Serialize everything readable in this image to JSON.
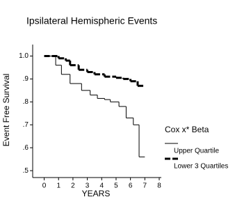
{
  "chart_data": {
    "type": "step",
    "title": "Ipsilateral Hemispheric Events",
    "xlabel": "YEARS",
    "ylabel": "Event Free Survival",
    "xlim": [
      -0.8,
      8
    ],
    "xticks": [
      0,
      1,
      2,
      3,
      4,
      5,
      6,
      7,
      8
    ],
    "ylim": [
      0.47,
      1.05
    ],
    "yticks": [
      {
        "value": 0.5,
        "label": ".5"
      },
      {
        "value": 0.6,
        "label": ".6"
      },
      {
        "value": 0.7,
        "label": ".7"
      },
      {
        "value": 0.8,
        "label": ".8"
      },
      {
        "value": 0.9,
        "label": ".9"
      },
      {
        "value": 1.0,
        "label": "1.0"
      }
    ],
    "legend_title": "Cox x* Beta",
    "legend": "right",
    "series": [
      {
        "name": "Upper Quartile",
        "color": "#000000",
        "width": 1,
        "dashed": false,
        "x": [
          0,
          0.8,
          1.2,
          1.8,
          2.6,
          3.2,
          3.7,
          4.2,
          4.6,
          5.2,
          5.7,
          6.2,
          6.6,
          7.0
        ],
        "values": [
          1.0,
          0.96,
          0.92,
          0.88,
          0.85,
          0.83,
          0.815,
          0.81,
          0.8,
          0.78,
          0.73,
          0.7,
          0.56,
          0.56
        ]
      },
      {
        "name": "Lower 3 Quartiles",
        "color": "#000000",
        "width": 3,
        "dashed": true,
        "x": [
          0,
          1.0,
          1.5,
          1.8,
          2.4,
          3.0,
          3.5,
          4.2,
          5.0,
          5.5,
          6.0,
          6.5,
          6.9
        ],
        "values": [
          1.0,
          0.99,
          0.98,
          0.96,
          0.94,
          0.93,
          0.92,
          0.91,
          0.905,
          0.9,
          0.89,
          0.87,
          0.87
        ]
      }
    ]
  }
}
